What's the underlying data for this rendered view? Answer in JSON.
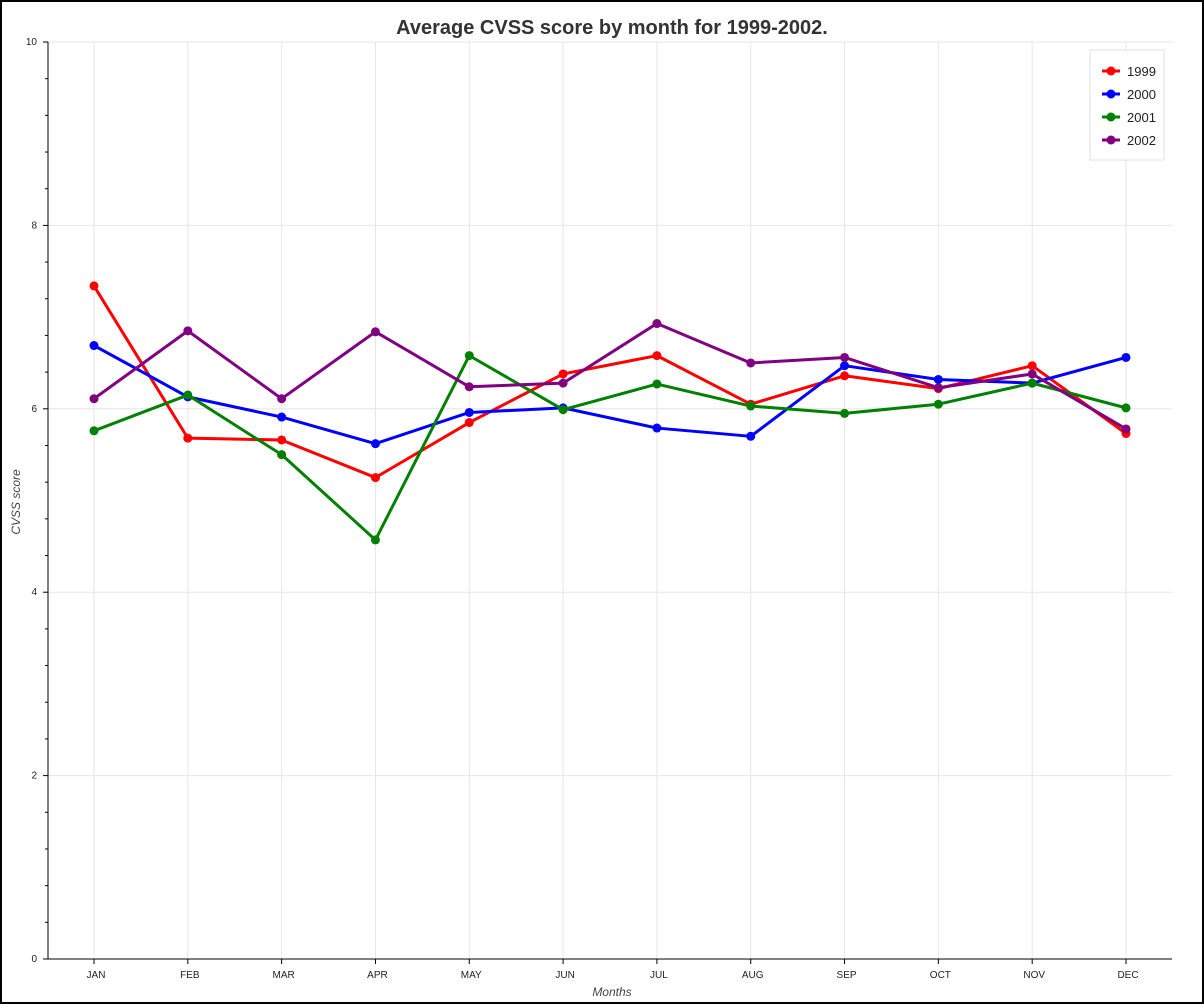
{
  "chart_data": {
    "type": "line",
    "title": "Average CVSS score by month for 1999-2002.",
    "xlabel": "Months",
    "ylabel": "CVSS score",
    "categories": [
      "JAN",
      "FEB",
      "MAR",
      "APR",
      "MAY",
      "JUN",
      "JUL",
      "AUG",
      "SEP",
      "OCT",
      "NOV",
      "DEC"
    ],
    "ylim": [
      0,
      10
    ],
    "yticks": [
      "0",
      "2",
      "4",
      "6",
      "8",
      "10"
    ],
    "grid": true,
    "legend_position": "top-right",
    "series": [
      {
        "name": "1999",
        "color": "#ff0000",
        "values": [
          7.34,
          5.68,
          5.66,
          5.25,
          5.85,
          6.38,
          6.58,
          6.05,
          6.36,
          6.22,
          6.47,
          5.73
        ]
      },
      {
        "name": "2000",
        "color": "#0000ff",
        "values": [
          6.69,
          6.13,
          5.91,
          5.62,
          5.96,
          6.01,
          5.79,
          5.7,
          6.47,
          6.32,
          6.28,
          6.56
        ]
      },
      {
        "name": "2001",
        "color": "#008000",
        "values": [
          5.76,
          6.15,
          5.5,
          4.57,
          6.58,
          5.99,
          6.27,
          6.03,
          5.95,
          6.05,
          6.28,
          6.01
        ]
      },
      {
        "name": "2002",
        "color": "#800080",
        "values": [
          6.11,
          6.85,
          6.11,
          6.84,
          6.24,
          6.28,
          6.93,
          6.5,
          6.56,
          6.23,
          6.38,
          5.78
        ]
      }
    ]
  }
}
